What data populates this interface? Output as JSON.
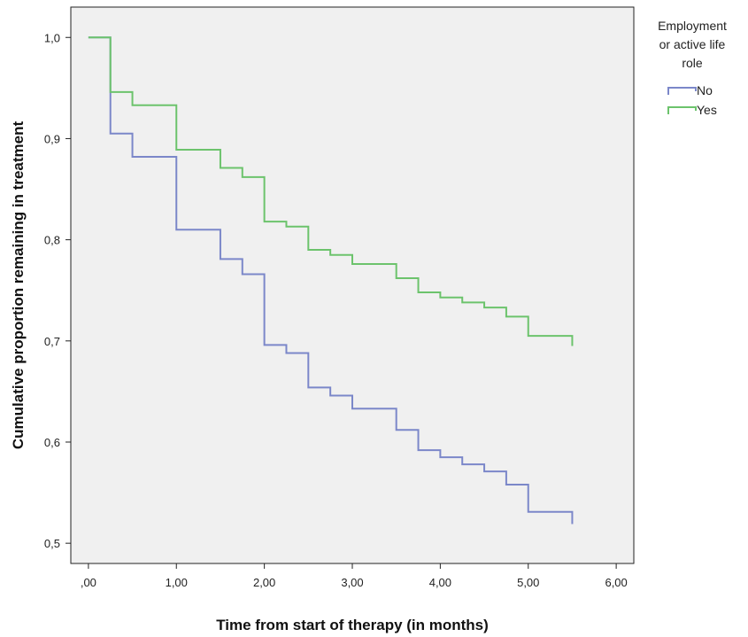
{
  "chart_data": {
    "type": "line",
    "step": true,
    "xlabel": "Time from start of therapy (in months)",
    "ylabel": "Cumulative proportion remaining in treatment",
    "xlim": [
      -0.2,
      6.2
    ],
    "ylim": [
      0.48,
      1.03
    ],
    "x_ticks": [
      0,
      1,
      2,
      3,
      4,
      5,
      6
    ],
    "x_tick_labels": [
      ",00",
      "1,00",
      "2,00",
      "3,00",
      "4,00",
      "5,00",
      "6,00"
    ],
    "y_ticks": [
      0.5,
      0.6,
      0.7,
      0.8,
      0.9,
      1.0
    ],
    "y_tick_labels": [
      "0,5",
      "0,6",
      "0,7",
      "0,8",
      "0,9",
      "1,0"
    ],
    "grid": false,
    "plot_background": "#f0f0f0",
    "legend": {
      "title": [
        "Employment",
        "or active life",
        "role"
      ],
      "position": "top-right-outside"
    },
    "series": [
      {
        "name": "No",
        "color": "#7b87c9",
        "x": [
          0,
          0.25,
          0.5,
          1.0,
          1.5,
          1.75,
          2.0,
          2.25,
          2.5,
          2.75,
          3.0,
          3.5,
          3.75,
          4.0,
          4.25,
          4.5,
          4.75,
          5.0,
          5.5
        ],
        "y": [
          1.0,
          0.905,
          0.882,
          0.81,
          0.781,
          0.766,
          0.696,
          0.688,
          0.654,
          0.646,
          0.633,
          0.612,
          0.592,
          0.585,
          0.578,
          0.571,
          0.558,
          0.531,
          0.519
        ]
      },
      {
        "name": "Yes",
        "color": "#6cc36c",
        "x": [
          0,
          0.25,
          0.5,
          1.0,
          1.5,
          1.75,
          2.0,
          2.25,
          2.5,
          2.75,
          3.0,
          3.5,
          3.75,
          4.0,
          4.25,
          4.5,
          4.75,
          5.0,
          5.5
        ],
        "y": [
          1.0,
          0.946,
          0.933,
          0.889,
          0.871,
          0.862,
          0.818,
          0.813,
          0.79,
          0.785,
          0.776,
          0.762,
          0.748,
          0.743,
          0.738,
          0.733,
          0.724,
          0.705,
          0.695
        ]
      }
    ]
  }
}
